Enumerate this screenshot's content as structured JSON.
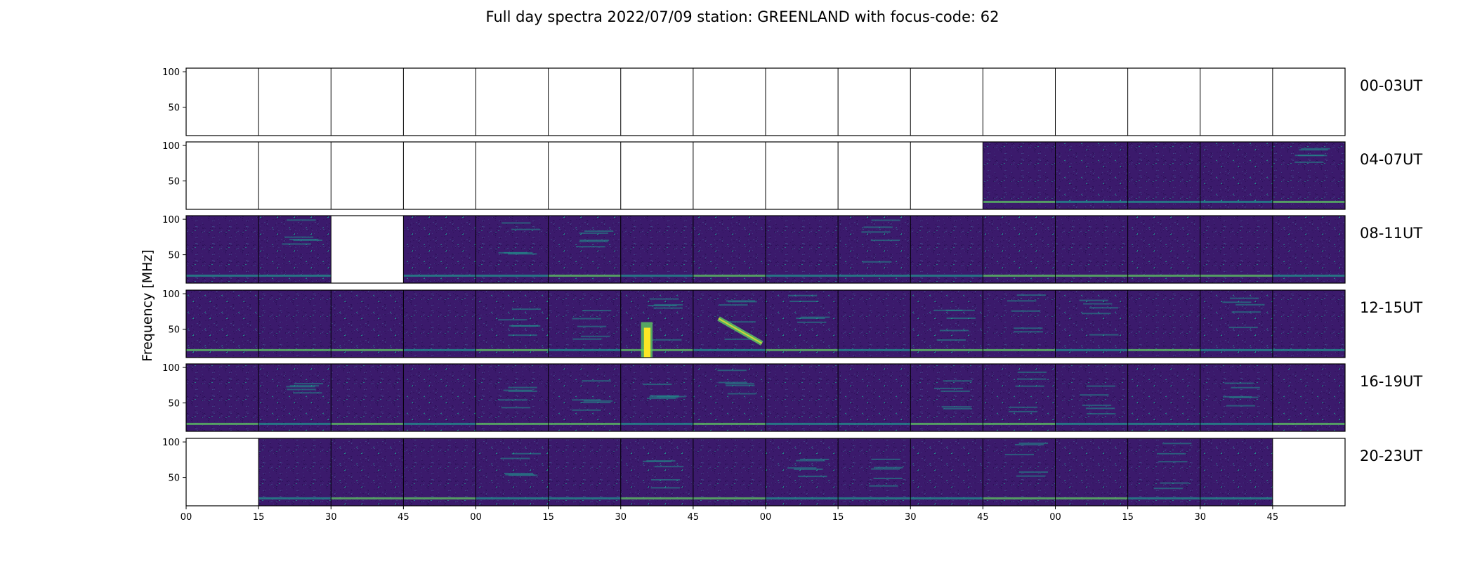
{
  "chart_data": {
    "type": "heatmap",
    "title": "Full day spectra 2022/07/09 station: GREENLAND with focus-code: 62",
    "ylabel": "Frequency [MHz]",
    "ylim": [
      10,
      105
    ],
    "yticks": [
      50,
      100
    ],
    "xticks": [
      "00",
      "15",
      "30",
      "45",
      "00",
      "15",
      "30",
      "45",
      "00",
      "15",
      "30",
      "45",
      "00",
      "15",
      "30",
      "45"
    ],
    "colormap": "viridis",
    "colors": {
      "background": "#3b1a6c",
      "noise_low": "#2c0f57",
      "noise_mid": "#414487",
      "band_mid": "#21918c",
      "band_high": "#5ec962",
      "peak": "#fde725"
    },
    "panels_per_row": 16,
    "rows": [
      {
        "label": "00-03UT",
        "data_present": [
          false,
          false,
          false,
          false,
          false,
          false,
          false,
          false,
          false,
          false,
          false,
          false,
          false,
          false,
          false,
          false
        ]
      },
      {
        "label": "04-07UT",
        "data_present": [
          false,
          false,
          false,
          false,
          false,
          false,
          false,
          false,
          false,
          false,
          false,
          true,
          true,
          true,
          true,
          true
        ]
      },
      {
        "label": "08-11UT",
        "data_present": [
          true,
          true,
          false,
          true,
          true,
          true,
          true,
          true,
          true,
          true,
          true,
          true,
          true,
          true,
          true,
          true
        ]
      },
      {
        "label": "12-15UT",
        "data_present": [
          true,
          true,
          true,
          true,
          true,
          true,
          true,
          true,
          true,
          true,
          true,
          true,
          true,
          true,
          true,
          true
        ]
      },
      {
        "label": "16-19UT",
        "data_present": [
          true,
          true,
          true,
          true,
          true,
          true,
          true,
          true,
          true,
          true,
          true,
          true,
          true,
          true,
          true,
          true
        ]
      },
      {
        "label": "20-23UT",
        "data_present": [
          false,
          true,
          true,
          true,
          true,
          true,
          true,
          true,
          true,
          true,
          true,
          true,
          true,
          true,
          true,
          false
        ]
      }
    ],
    "highlights": [
      {
        "row": 3,
        "panel": 6,
        "description": "bright solar radio burst",
        "freq_range": [
          10,
          60
        ],
        "color": "#fde725"
      },
      {
        "row": 3,
        "panel": 7,
        "description": "drifting radio burst",
        "freq_range": [
          30,
          65
        ],
        "color": "#5ec962"
      }
    ]
  }
}
